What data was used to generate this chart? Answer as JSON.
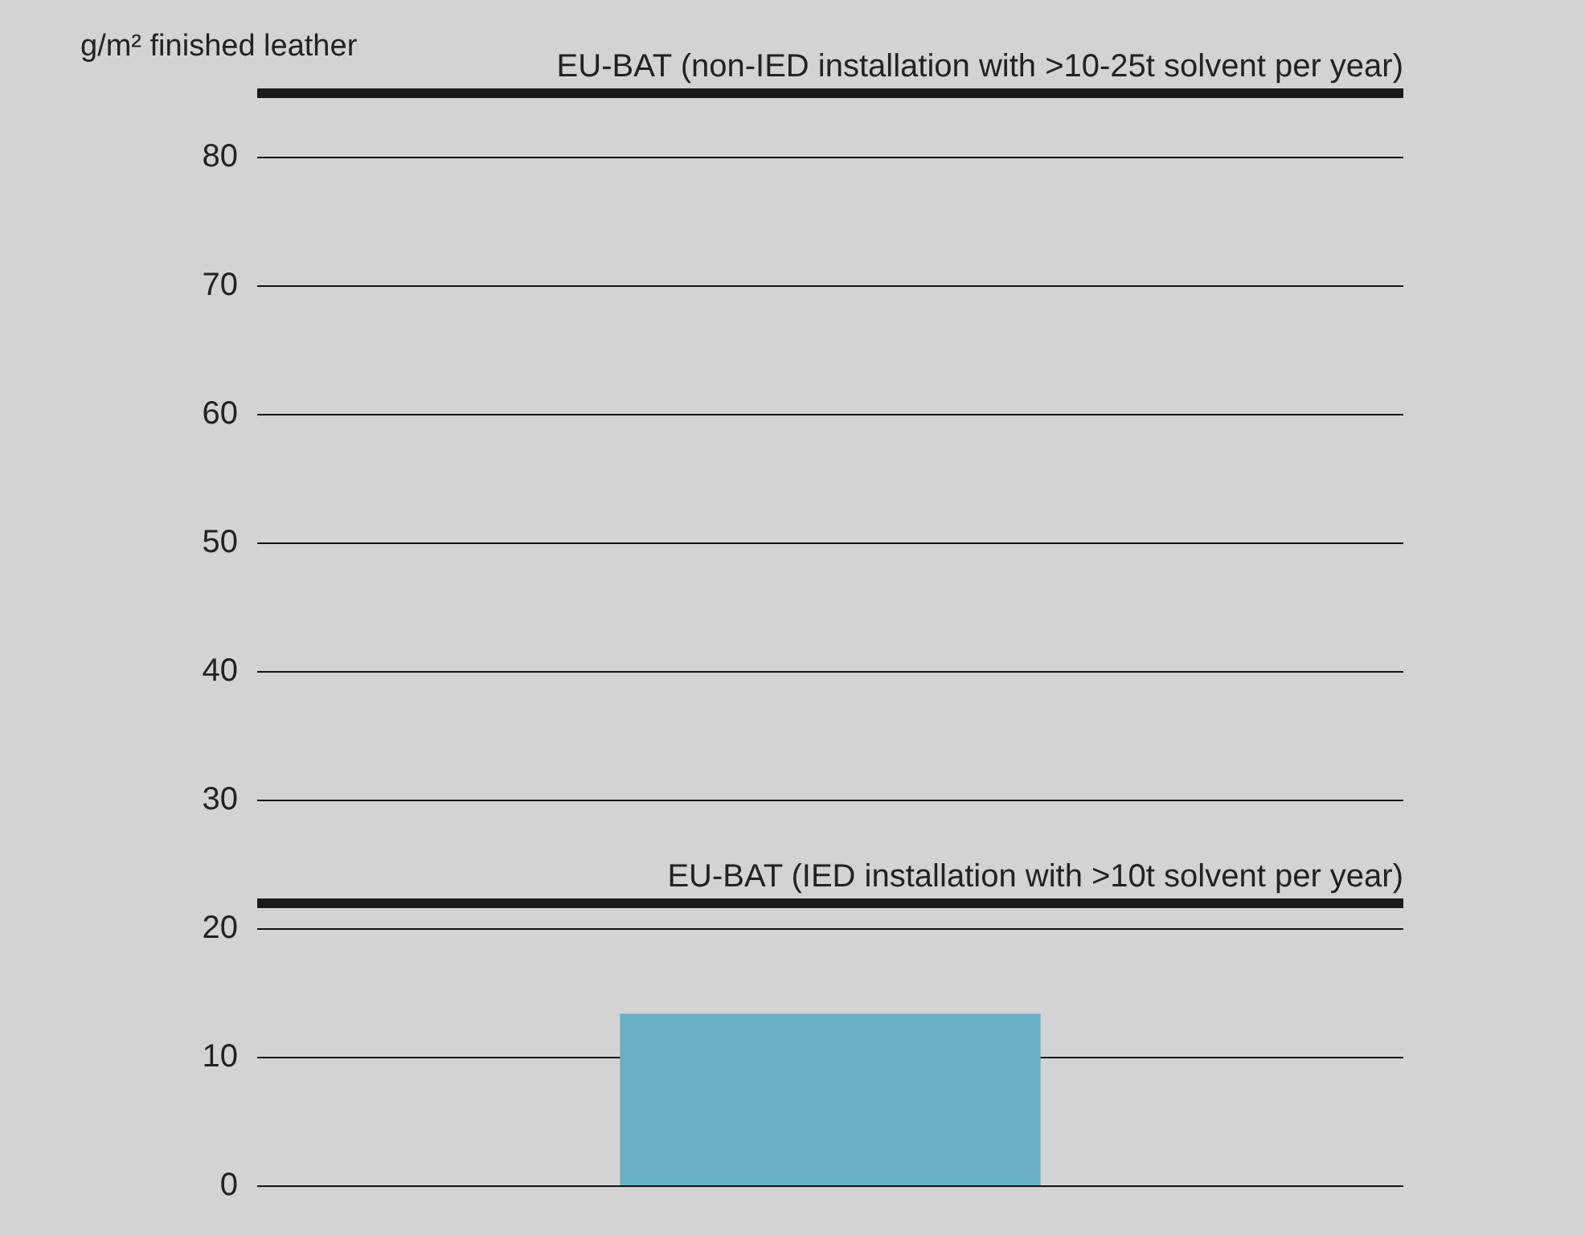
{
  "chart_data": {
    "type": "bar",
    "ylabel": "g/m² finished leather",
    "categories": [
      null
    ],
    "values": [
      13.4
    ],
    "color": "#68afc6",
    "ylim": [
      0,
      85
    ],
    "yticks": [
      0,
      10,
      20,
      30,
      40,
      50,
      60,
      70,
      80
    ],
    "grid": "y",
    "legend": false,
    "ref_lines": [
      {
        "axis": "y",
        "value": 85,
        "label": "EU-BAT (non-IED installation with >10-25t solvent per year)",
        "color": "#1a1a1a"
      },
      {
        "axis": "y",
        "value": 22,
        "label": "EU-BAT (IED installation with >10t solvent per year)",
        "color": "#1a1a1a"
      }
    ]
  }
}
